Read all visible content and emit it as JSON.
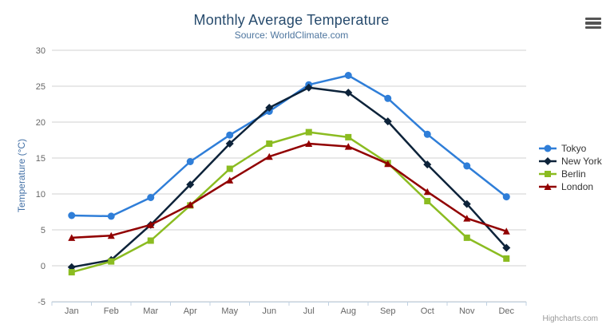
{
  "chart": {
    "context_button_icon": "hamburger-menu-icon",
    "colors": {
      "title": "#274b6d",
      "subtitle": "#4d759e",
      "axis_title": "#4572a7",
      "tick_label": "#666666",
      "grid": "#d0d0d0",
      "axis_line": "#c0d0e0",
      "legend_text": "#333333",
      "credits": "#999999"
    }
  },
  "chart_data": {
    "type": "line",
    "title": "Monthly Average Temperature",
    "subtitle": "Source: WorldClimate.com",
    "credits": "Highcharts.com",
    "categories": [
      "Jan",
      "Feb",
      "Mar",
      "Apr",
      "May",
      "Jun",
      "Jul",
      "Aug",
      "Sep",
      "Oct",
      "Nov",
      "Dec"
    ],
    "series": [
      {
        "name": "Tokyo",
        "color": "#2f7ed8",
        "marker": "circle",
        "values": [
          7.0,
          6.9,
          9.5,
          14.5,
          18.2,
          21.5,
          25.2,
          26.5,
          23.3,
          18.3,
          13.9,
          9.6
        ]
      },
      {
        "name": "New York",
        "color": "#0d233a",
        "marker": "diamond",
        "values": [
          -0.2,
          0.8,
          5.7,
          11.3,
          17.0,
          22.0,
          24.8,
          24.1,
          20.1,
          14.1,
          8.6,
          2.5
        ]
      },
      {
        "name": "Berlin",
        "color": "#8bbc21",
        "marker": "square",
        "values": [
          -0.9,
          0.6,
          3.5,
          8.4,
          13.5,
          17.0,
          18.6,
          17.9,
          14.3,
          9.0,
          3.9,
          1.0
        ]
      },
      {
        "name": "London",
        "color": "#910000",
        "marker": "triangle",
        "values": [
          3.9,
          4.2,
          5.7,
          8.5,
          11.9,
          15.2,
          17.0,
          16.6,
          14.2,
          10.3,
          6.6,
          4.8
        ]
      }
    ],
    "xlabel": "",
    "ylabel": "Temperature (°C)",
    "ylim": [
      -5,
      30
    ],
    "yticks": [
      30,
      25,
      20,
      15,
      10,
      5,
      0,
      -5
    ],
    "grid": true,
    "legend_position": "right"
  }
}
